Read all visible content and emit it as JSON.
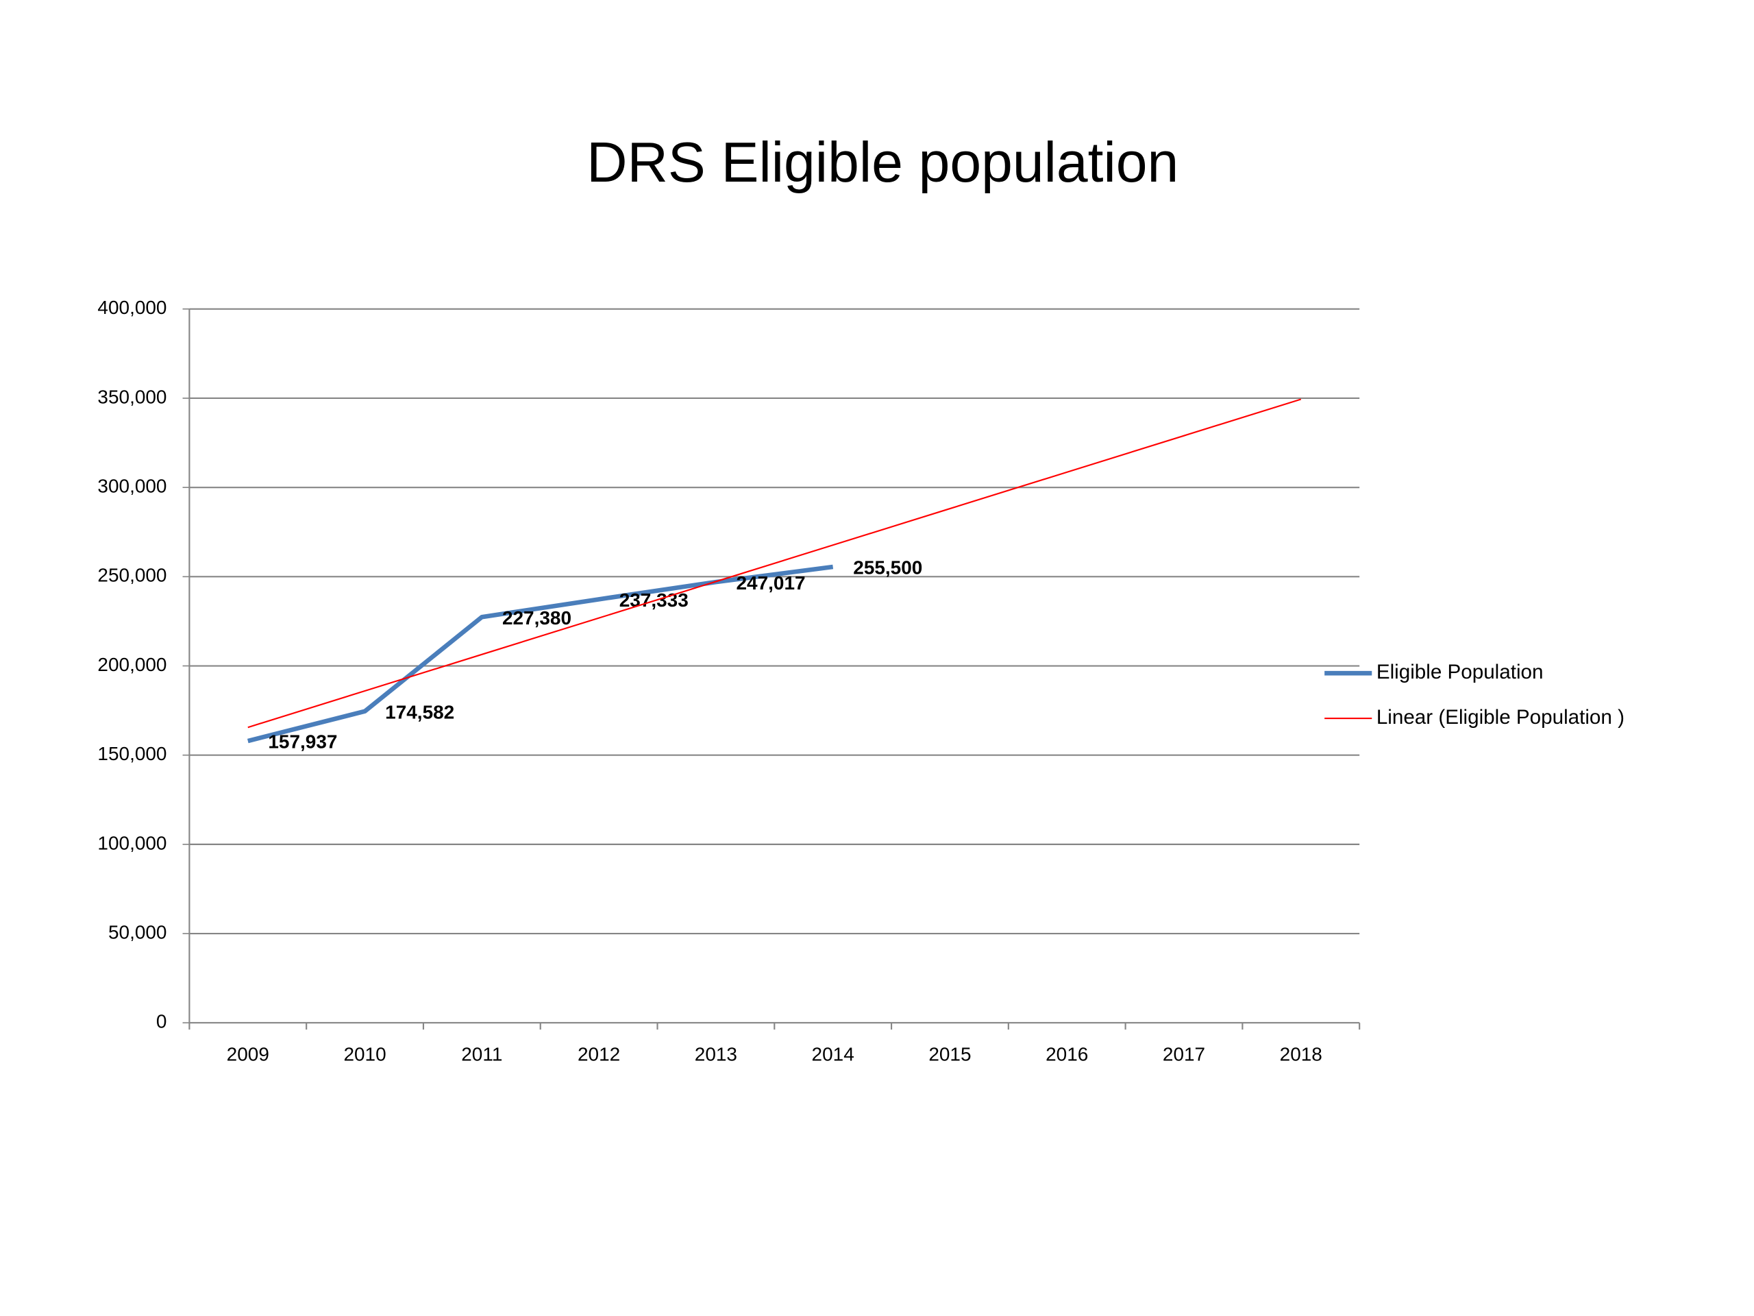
{
  "chart_data": {
    "type": "line",
    "title": "DRS Eligible population",
    "categories": [
      "2009",
      "2010",
      "2011",
      "2012",
      "2013",
      "2014",
      "2015",
      "2016",
      "2017",
      "2018"
    ],
    "series": [
      {
        "name": "Eligible Population",
        "color": "#4a7ebb",
        "width": 4,
        "values": [
          157937,
          174582,
          227380,
          237333,
          247017,
          255500,
          null,
          null,
          null,
          null
        ],
        "value_labels": [
          "157,937",
          "174,582",
          "227,380",
          "237,333",
          "247,017",
          "255,500",
          null,
          null,
          null,
          null
        ]
      },
      {
        "name": "Linear (Eligible Population )",
        "color": "#ff0000",
        "width": 1.3,
        "values": [
          165548,
          185979,
          206410,
          226840,
          247271,
          267702,
          288133,
          308564,
          328994,
          349425
        ]
      }
    ],
    "ylim": [
      0,
      400000
    ],
    "yticks": [
      0,
      {
        "value": 50000,
        "label": "50,000"
      },
      {
        "value": 100000,
        "label": "100,000"
      },
      {
        "value": 150000,
        "label": "150,000"
      },
      {
        "value": 200000,
        "label": "200,000"
      },
      {
        "value": 250000,
        "label": "250,000"
      },
      {
        "value": 300000,
        "label": "300,000"
      },
      {
        "value": 350000,
        "label": "350,000"
      },
      {
        "value": 400000,
        "label": "400,000"
      }
    ],
    "grid": true,
    "legend": "right"
  }
}
